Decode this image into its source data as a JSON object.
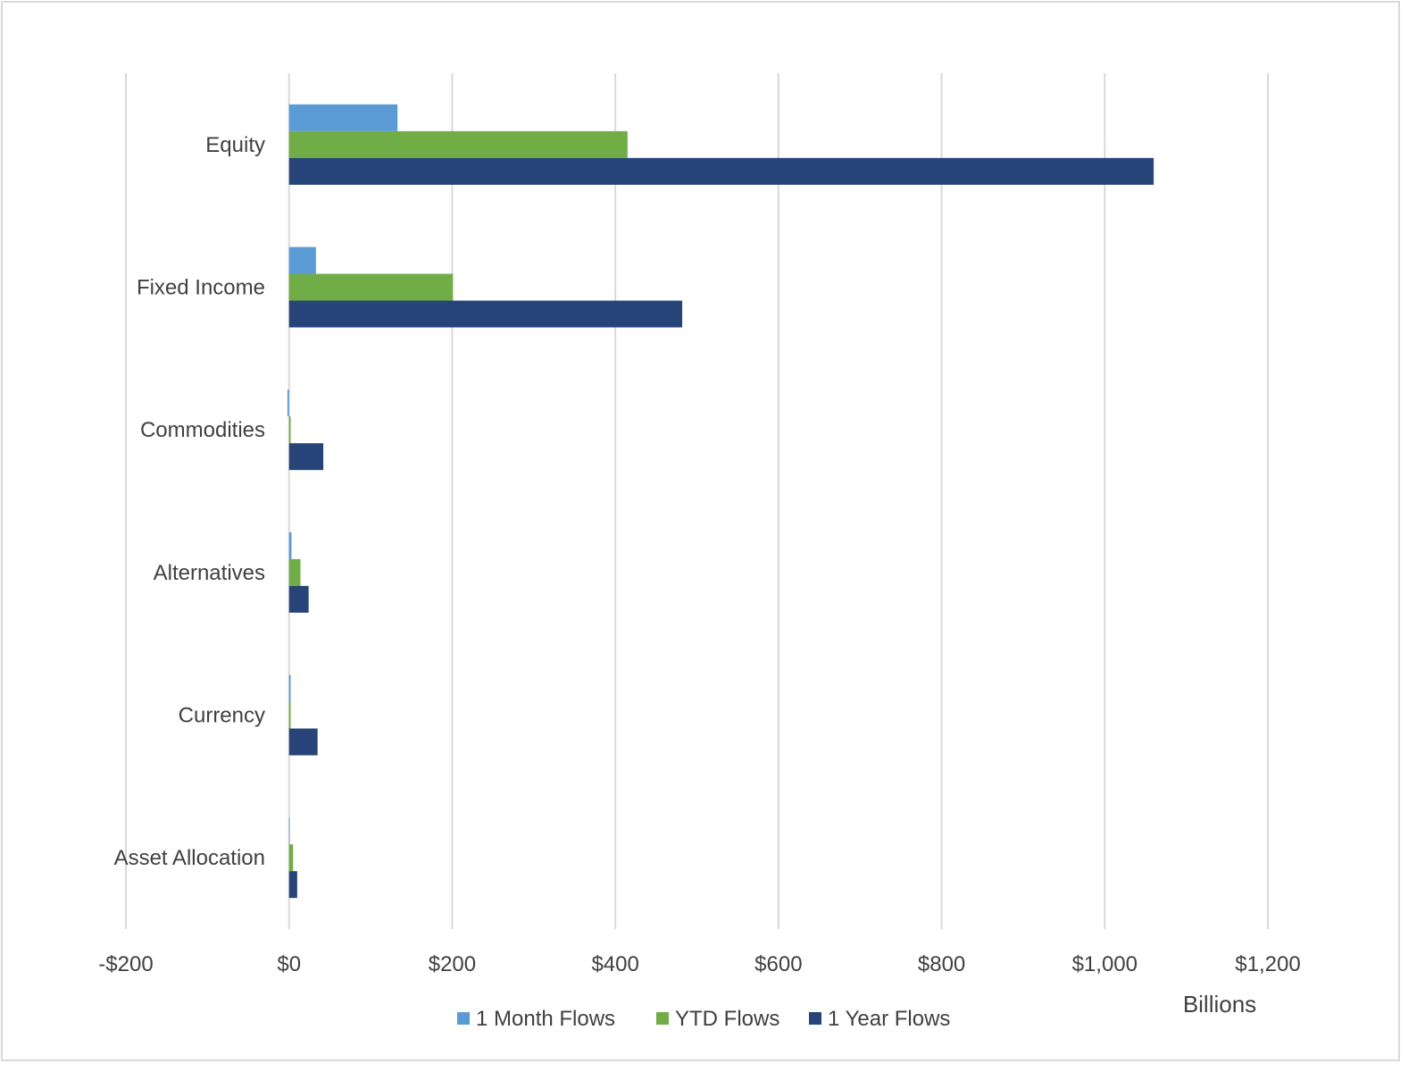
{
  "chart_data": {
    "type": "bar",
    "orientation": "horizontal",
    "categories": [
      "Equity",
      "Fixed Income",
      "Commodities",
      "Alternatives",
      "Currency",
      "Asset Allocation"
    ],
    "series": [
      {
        "name": "1 Month Flows",
        "color": "#5b9bd5",
        "values": [
          133,
          33,
          -2,
          3,
          2,
          0
        ]
      },
      {
        "name": "YTD Flows",
        "color": "#70ad47",
        "values": [
          415,
          201,
          2,
          14,
          2,
          5
        ]
      },
      {
        "name": "1 Year Flows",
        "color": "#264478",
        "values": [
          1060,
          482,
          42,
          24,
          35,
          10
        ]
      }
    ],
    "xlim": [
      -200,
      1200
    ],
    "xticks": [
      -200,
      0,
      200,
      400,
      600,
      800,
      1000,
      1200
    ],
    "xtick_labels": [
      "-$200",
      "$0",
      "$200",
      "$400",
      "$600",
      "$800",
      "$1,000",
      "$1,200"
    ],
    "unit_label": "Billions",
    "title": "",
    "xlabel": "",
    "ylabel": "",
    "grid": "vertical",
    "legend_position": "bottom"
  }
}
